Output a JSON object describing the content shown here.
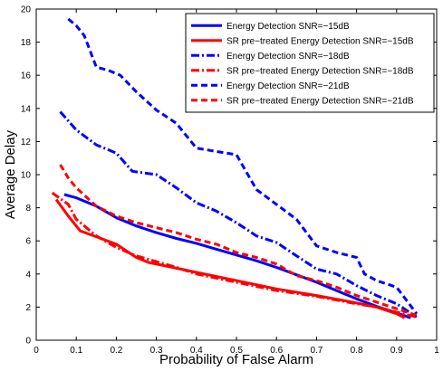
{
  "chart_data": {
    "type": "line",
    "xlabel": "Probability of False Alarm",
    "ylabel": "Average Delay",
    "xlim": [
      0,
      1
    ],
    "ylim": [
      0,
      20
    ],
    "xticks": [
      "0",
      "0.1",
      "0.2",
      "0.3",
      "0.4",
      "0.5",
      "0.6",
      "0.7",
      "0.8",
      "0.9",
      "1"
    ],
    "yticks": [
      "0",
      "2",
      "4",
      "6",
      "8",
      "10",
      "12",
      "14",
      "16",
      "18",
      "20"
    ],
    "grid": false,
    "legend_position": "top-right",
    "series": [
      {
        "name": "Energy Detection SNR=−15dB",
        "color": "#0000ff",
        "style": "solid",
        "x": [
          0.07,
          0.1,
          0.15,
          0.2,
          0.25,
          0.3,
          0.35,
          0.4,
          0.45,
          0.5,
          0.55,
          0.6,
          0.65,
          0.7,
          0.75,
          0.8,
          0.85,
          0.9,
          0.935
        ],
        "y": [
          8.8,
          8.6,
          8.1,
          7.4,
          6.9,
          6.5,
          6.15,
          5.85,
          5.5,
          5.15,
          4.8,
          4.4,
          3.95,
          3.5,
          3.0,
          2.5,
          2.05,
          1.65,
          1.35
        ]
      },
      {
        "name": "SR pre−treated Energy Detection SNR=−15dB",
        "color": "#ff0000",
        "style": "solid",
        "x": [
          0.05,
          0.08,
          0.11,
          0.15,
          0.2,
          0.25,
          0.28,
          0.35,
          0.4,
          0.5,
          0.6,
          0.7,
          0.8,
          0.85,
          0.9,
          0.92
        ],
        "y": [
          8.5,
          7.5,
          6.6,
          6.25,
          5.8,
          5.0,
          4.7,
          4.35,
          4.1,
          3.6,
          3.1,
          2.7,
          2.25,
          2.0,
          1.6,
          1.35
        ]
      },
      {
        "name": "Energy Detection SNR=−18dB",
        "color": "#0000ff",
        "style": "dashdot",
        "x": [
          0.06,
          0.1,
          0.15,
          0.2,
          0.24,
          0.3,
          0.35,
          0.4,
          0.45,
          0.5,
          0.55,
          0.6,
          0.65,
          0.7,
          0.75,
          0.8,
          0.85,
          0.9,
          0.95
        ],
        "y": [
          13.8,
          12.7,
          11.8,
          11.3,
          10.2,
          10.0,
          9.2,
          8.3,
          7.8,
          7.1,
          6.3,
          5.9,
          5.1,
          4.3,
          4.0,
          3.3,
          2.7,
          2.2,
          1.4
        ]
      },
      {
        "name": "SR pre−treated Energy Detection SNR=−18dB",
        "color": "#ff0000",
        "style": "dashdot",
        "x": [
          0.04,
          0.08,
          0.1,
          0.15,
          0.2,
          0.25,
          0.3,
          0.35,
          0.4,
          0.5,
          0.6,
          0.7,
          0.8,
          0.85,
          0.9,
          0.95
        ],
        "y": [
          8.9,
          8.2,
          7.3,
          6.3,
          5.6,
          5.1,
          4.75,
          4.4,
          4.0,
          3.5,
          3.0,
          2.65,
          2.2,
          2.0,
          1.7,
          1.4
        ]
      },
      {
        "name": "Energy Detection SNR=−21dB",
        "color": "#0000ff",
        "style": "dashed",
        "x": [
          0.08,
          0.1,
          0.12,
          0.15,
          0.18,
          0.21,
          0.25,
          0.3,
          0.35,
          0.4,
          0.45,
          0.5,
          0.55,
          0.6,
          0.65,
          0.7,
          0.75,
          0.8,
          0.82,
          0.85,
          0.9,
          0.95
        ],
        "y": [
          19.4,
          19.0,
          18.4,
          16.5,
          16.3,
          16.0,
          15.0,
          13.9,
          13.1,
          11.6,
          11.4,
          11.2,
          9.1,
          8.2,
          7.3,
          5.7,
          5.3,
          5.0,
          4.0,
          3.6,
          3.2,
          1.6
        ]
      },
      {
        "name": "SR pre−treated Energy Detection SNR=−21dB",
        "color": "#ff0000",
        "style": "dashed",
        "x": [
          0.06,
          0.08,
          0.1,
          0.15,
          0.2,
          0.25,
          0.3,
          0.35,
          0.4,
          0.45,
          0.5,
          0.55,
          0.6,
          0.65,
          0.7,
          0.75,
          0.8,
          0.85,
          0.9,
          0.95
        ],
        "y": [
          10.6,
          9.8,
          9.2,
          8.1,
          7.5,
          7.1,
          6.8,
          6.5,
          6.1,
          5.8,
          5.3,
          5.0,
          4.6,
          3.9,
          3.6,
          3.2,
          2.7,
          2.3,
          1.9,
          1.5
        ]
      }
    ]
  }
}
